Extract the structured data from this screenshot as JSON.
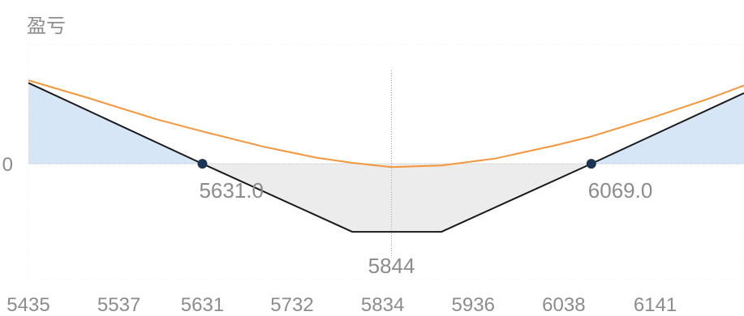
{
  "chart_data": {
    "type": "area",
    "title": "盈亏",
    "x_ticks": [
      5435,
      5537,
      5631,
      5732,
      5834,
      5936,
      6038,
      6141
    ],
    "y_ticks": [
      {
        "value": 0,
        "label": "0"
      }
    ],
    "xlim": [
      5435,
      6241
    ],
    "ylim": [
      -136,
      140
    ],
    "series": [
      {
        "name": "",
        "color": "#1a1a1a",
        "role": "expiry",
        "points": [
          [
            5435,
            95
          ],
          [
            5631,
            0
          ],
          [
            5800,
            -80
          ],
          [
            5900,
            -80
          ],
          [
            6069,
            0
          ],
          [
            6241,
            83
          ]
        ]
      },
      {
        "name": "",
        "color": "#f5963a",
        "role": "current",
        "points": [
          [
            5435,
            98
          ],
          [
            5500,
            78
          ],
          [
            5580,
            52
          ],
          [
            5631,
            38
          ],
          [
            5700,
            20
          ],
          [
            5760,
            7
          ],
          [
            5800,
            1
          ],
          [
            5844,
            -4
          ],
          [
            5900,
            -2
          ],
          [
            5960,
            6
          ],
          [
            6030,
            22
          ],
          [
            6069,
            32
          ],
          [
            6140,
            55
          ],
          [
            6200,
            76
          ],
          [
            6241,
            92
          ]
        ]
      }
    ],
    "profit_fill_color": "#d6e6f7",
    "loss_fill_color": "#ececec",
    "breakevens": [
      {
        "x": 5631,
        "label": "5631.0"
      },
      {
        "x": 6069,
        "label": "6069.0"
      }
    ],
    "marker": {
      "x": 5844,
      "label": "5844"
    },
    "grid": false
  }
}
